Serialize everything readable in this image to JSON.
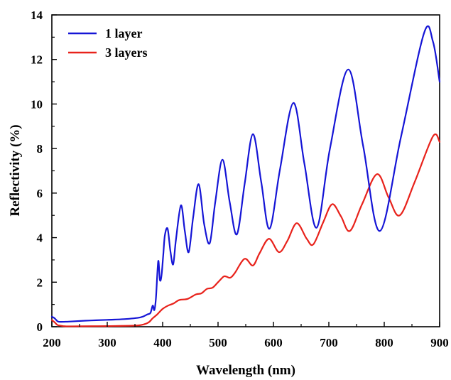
{
  "chart_data": {
    "type": "line",
    "xlabel": "Wavelength (nm)",
    "ylabel": "Reflectivity (%)",
    "xlim": [
      200,
      900
    ],
    "ylim": [
      0,
      14
    ],
    "xticks": [
      200,
      300,
      400,
      500,
      600,
      700,
      800,
      900
    ],
    "yticks": [
      0,
      2,
      4,
      6,
      8,
      10,
      12,
      14
    ],
    "xtick_labels": [
      "200",
      "300",
      "400",
      "500",
      "600",
      "700",
      "800",
      "900"
    ],
    "ytick_labels": [
      "0",
      "2",
      "4",
      "6",
      "8",
      "10",
      "12",
      "14"
    ],
    "legend_position": "top-left",
    "grid": false,
    "series": [
      {
        "name": "1 layer",
        "color": "#1515d6",
        "x": [
          200,
          205,
          210,
          215,
          230,
          260,
          300,
          330,
          360,
          372,
          378,
          382,
          385,
          388,
          392,
          395,
          398,
          401,
          404,
          409,
          414,
          419,
          424,
          433,
          440,
          447,
          455,
          465,
          475,
          485,
          495,
          508,
          521,
          534,
          548,
          563,
          578,
          593,
          612,
          636,
          656,
          678,
          702,
          735,
          762,
          792,
          830,
          872,
          888,
          900
        ],
        "y": [
          0.45,
          0.38,
          0.25,
          0.22,
          0.23,
          0.27,
          0.31,
          0.34,
          0.42,
          0.55,
          0.62,
          0.95,
          0.75,
          1.3,
          2.95,
          2.1,
          2.3,
          3.2,
          4.1,
          4.4,
          3.4,
          2.8,
          3.9,
          5.45,
          4.3,
          3.35,
          4.9,
          6.4,
          4.6,
          3.75,
          5.6,
          7.5,
          5.6,
          4.15,
          6.4,
          8.65,
          6.5,
          4.4,
          7.1,
          10.05,
          7.3,
          4.45,
          8.0,
          11.55,
          8.1,
          4.3,
          8.5,
          13.2,
          12.8,
          11.0
        ]
      },
      {
        "name": "3 layers",
        "color": "#e8221b",
        "x": [
          200,
          205,
          210,
          215,
          225,
          250,
          300,
          350,
          365,
          375,
          382,
          390,
          400,
          410,
          420,
          430,
          445,
          460,
          470,
          480,
          490,
          500,
          510,
          515,
          522,
          530,
          548,
          563,
          575,
          592,
          610,
          625,
          642,
          660,
          672,
          690,
          706,
          722,
          738,
          760,
          787,
          808,
          828,
          855,
          888,
          900
        ],
        "y": [
          0.3,
          0.2,
          0.08,
          0.05,
          0.02,
          0.02,
          0.03,
          0.05,
          0.1,
          0.2,
          0.38,
          0.55,
          0.8,
          0.95,
          1.05,
          1.2,
          1.25,
          1.45,
          1.5,
          1.7,
          1.75,
          2.0,
          2.25,
          2.25,
          2.2,
          2.4,
          3.05,
          2.75,
          3.3,
          3.95,
          3.35,
          3.85,
          4.65,
          3.95,
          3.7,
          4.7,
          5.5,
          4.95,
          4.3,
          5.5,
          6.85,
          5.8,
          5.0,
          6.5,
          8.55,
          8.3
        ]
      }
    ]
  }
}
